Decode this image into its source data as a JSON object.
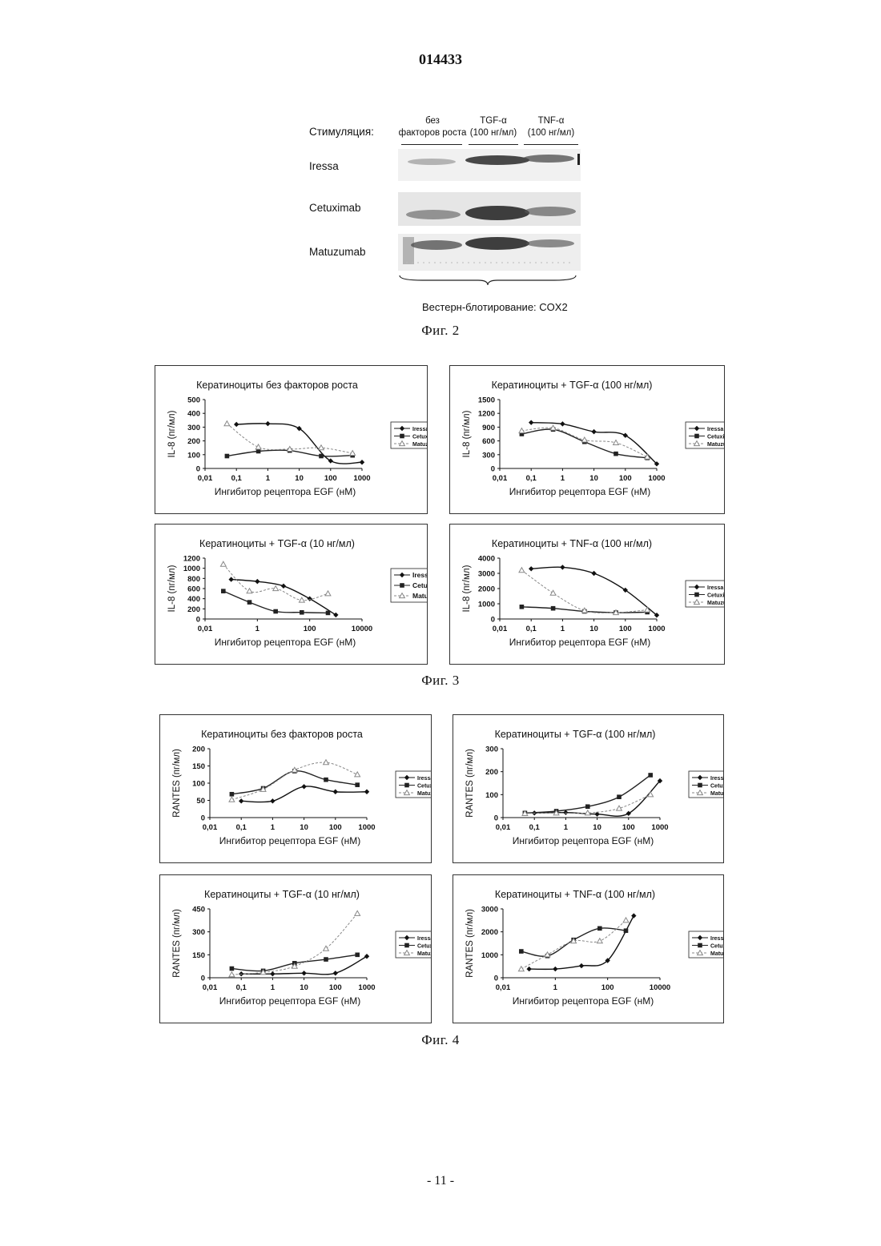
{
  "header": {
    "doc_number": "014433"
  },
  "fig2": {
    "stimulation_label": "Стимуляция:",
    "lanes": [
      {
        "line1": "без",
        "line2": "факторов роста"
      },
      {
        "line1": "TGF-α",
        "line2": "(100 нг/мл)"
      },
      {
        "line1": "TNF-α",
        "line2": "(100 нг/мл)"
      }
    ],
    "rows": [
      "Iressa",
      "Cetuximab",
      "Matuzumab"
    ],
    "bottom_label": "Вестерн-блотирование: COX2",
    "caption": "Фиг. 2"
  },
  "fig3_caption": "Фиг. 3",
  "fig4_caption": "Фиг. 4",
  "footer": {
    "page_number": "- 11 -"
  },
  "colors": {
    "ink": "#111111",
    "iressa": "#111111",
    "cetuximab": "#222222",
    "matuzumab": "#888888"
  },
  "chart_data": [
    {
      "type": "line",
      "title": "Кератиноциты без факторов роста",
      "xlabel": "Ингибитор рецептора EGF (нМ)",
      "ylabel": "IL-8 (пг/мл)",
      "xscale": "log",
      "xticks": [
        "0,01",
        "0,1",
        "1",
        "10",
        "100",
        "1000"
      ],
      "xlim": [
        0.01,
        1000
      ],
      "ylim": [
        0,
        500
      ],
      "yticks": [
        0,
        100,
        200,
        300,
        400,
        500
      ],
      "legend": "right",
      "series": [
        {
          "name": "Iressa",
          "x": [
            0.1,
            1,
            10,
            100,
            1000
          ],
          "y": [
            320,
            325,
            290,
            55,
            45
          ]
        },
        {
          "name": "Cetuximab",
          "x": [
            0.05,
            0.5,
            5,
            50,
            500
          ],
          "y": [
            90,
            125,
            130,
            90,
            95
          ]
        },
        {
          "name": "Matuzumab",
          "x": [
            0.05,
            0.5,
            5,
            50,
            500
          ],
          "y": [
            325,
            155,
            140,
            150,
            110
          ]
        }
      ]
    },
    {
      "type": "line",
      "title": "Кератиноциты + TGF-α (100 нг/мл)",
      "xlabel": "Ингибитор рецептора EGF (нМ)",
      "ylabel": "IL-8 (пг/мл)",
      "xscale": "log",
      "xticks": [
        "0,01",
        "0,1",
        "1",
        "10",
        "100",
        "1000"
      ],
      "xlim": [
        0.01,
        1000
      ],
      "ylim": [
        0,
        1500
      ],
      "yticks": [
        0,
        300,
        600,
        900,
        1200,
        1500
      ],
      "legend": "right",
      "series": [
        {
          "name": "Iressa",
          "x": [
            0.1,
            1,
            10,
            100,
            1000
          ],
          "y": [
            1000,
            970,
            800,
            720,
            100
          ]
        },
        {
          "name": "Cetuximab",
          "x": [
            0.05,
            0.5,
            5,
            50,
            500
          ],
          "y": [
            750,
            850,
            580,
            320,
            230
          ]
        },
        {
          "name": "Matuzumab",
          "x": [
            0.05,
            0.5,
            5,
            50,
            500
          ],
          "y": [
            820,
            880,
            620,
            560,
            250
          ]
        }
      ]
    },
    {
      "type": "line",
      "title": "Кератиноциты + TGF-α (10 нг/мл)",
      "xlabel": "Ингибитор рецептора EGF (нМ)",
      "ylabel": "IL-8 (пг/мл)",
      "xscale": "log",
      "xticks": [
        "0,01",
        "1",
        "100",
        "10000"
      ],
      "xlim": [
        0.01,
        10000
      ],
      "ylim": [
        0,
        1200
      ],
      "yticks": [
        0,
        200,
        400,
        600,
        800,
        1000,
        1200
      ],
      "legend": "right",
      "series": [
        {
          "name": "Iressa",
          "x": [
            0.1,
            1,
            10,
            100,
            1000
          ],
          "y": [
            780,
            740,
            650,
            400,
            80
          ]
        },
        {
          "name": "Cetuximab",
          "x": [
            0.05,
            0.5,
            5,
            50,
            500
          ],
          "y": [
            550,
            330,
            150,
            130,
            120
          ]
        },
        {
          "name": "Matuzumab",
          "x": [
            0.05,
            0.5,
            5,
            50,
            500
          ],
          "y": [
            1080,
            550,
            600,
            370,
            500
          ]
        }
      ]
    },
    {
      "type": "line",
      "title": "Кератиноциты + TNF-α (100 нг/мл)",
      "xlabel": "Ингибитор рецептора EGF (нМ)",
      "ylabel": "IL-8 (пг/мл)",
      "xscale": "log",
      "xticks": [
        "0,01",
        "0,1",
        "1",
        "10",
        "100",
        "1000"
      ],
      "xlim": [
        0.01,
        1000
      ],
      "ylim": [
        0,
        4000
      ],
      "yticks": [
        0,
        1000,
        2000,
        3000,
        4000
      ],
      "legend": "right",
      "series": [
        {
          "name": "Iressa",
          "x": [
            0.1,
            1,
            10,
            100,
            1000
          ],
          "y": [
            3300,
            3400,
            3000,
            1900,
            250
          ]
        },
        {
          "name": "Cetuximab",
          "x": [
            0.05,
            0.5,
            5,
            50,
            500
          ],
          "y": [
            800,
            700,
            500,
            420,
            450
          ]
        },
        {
          "name": "Matuzumab",
          "x": [
            0.05,
            0.5,
            5,
            50,
            500
          ],
          "y": [
            3200,
            1700,
            550,
            420,
            600
          ]
        }
      ]
    },
    {
      "type": "line",
      "title": "Кератиноциты без факторов роста",
      "xlabel": "Ингибитор рецептора EGF (нМ)",
      "ylabel": "RANTES (пг/мл)",
      "xscale": "log",
      "xticks": [
        "0,01",
        "0,1",
        "1",
        "10",
        "100",
        "1000"
      ],
      "xlim": [
        0.01,
        1000
      ],
      "ylim": [
        0,
        200
      ],
      "yticks": [
        0,
        50,
        100,
        150,
        200
      ],
      "legend": "right",
      "series": [
        {
          "name": "Iressa",
          "x": [
            0.1,
            1,
            10,
            100,
            1000
          ],
          "y": [
            48,
            48,
            90,
            75,
            75
          ]
        },
        {
          "name": "Cetuximab",
          "x": [
            0.05,
            0.5,
            5,
            50,
            500
          ],
          "y": [
            68,
            85,
            135,
            110,
            95
          ]
        },
        {
          "name": "Matuzumab",
          "x": [
            0.05,
            0.5,
            5,
            50,
            500
          ],
          "y": [
            52,
            82,
            138,
            160,
            125
          ]
        }
      ]
    },
    {
      "type": "line",
      "title": "Кератиноциты + TGF-α (100 нг/мл)",
      "xlabel": "Ингибитор рецептора EGF (нМ)",
      "ylabel": "RANTES (пг/мл)",
      "xscale": "log",
      "xticks": [
        "0,01",
        "0,1",
        "1",
        "10",
        "100",
        "1000"
      ],
      "xlim": [
        0.01,
        1000
      ],
      "ylim": [
        0,
        300
      ],
      "yticks": [
        0,
        100,
        200,
        300
      ],
      "legend": "right",
      "series": [
        {
          "name": "Iressa",
          "x": [
            0.1,
            1,
            10,
            100,
            1000
          ],
          "y": [
            20,
            22,
            15,
            18,
            160
          ]
        },
        {
          "name": "Cetuximab",
          "x": [
            0.05,
            0.5,
            5,
            50,
            500
          ],
          "y": [
            20,
            28,
            48,
            90,
            185
          ]
        },
        {
          "name": "Matuzumab",
          "x": [
            0.05,
            0.5,
            5,
            50,
            500
          ],
          "y": [
            18,
            20,
            20,
            40,
            100
          ]
        }
      ]
    },
    {
      "type": "line",
      "title": "Кератиноциты + TGF-α (10 нг/мл)",
      "xlabel": "Ингибитор рецептора EGF (нМ)",
      "ylabel": "RANTES (пг/мл)",
      "xscale": "log",
      "xticks": [
        "0,01",
        "0,1",
        "1",
        "10",
        "100",
        "1000"
      ],
      "xlim": [
        0.01,
        1000
      ],
      "ylim": [
        0,
        450
      ],
      "yticks": [
        0,
        150,
        300,
        450
      ],
      "legend": "right",
      "series": [
        {
          "name": "Iressa",
          "x": [
            0.1,
            1,
            10,
            100,
            1000
          ],
          "y": [
            25,
            25,
            30,
            30,
            140
          ]
        },
        {
          "name": "Cetuximab",
          "x": [
            0.05,
            0.5,
            5,
            50,
            500
          ],
          "y": [
            60,
            45,
            95,
            120,
            150
          ]
        },
        {
          "name": "Matuzumab",
          "x": [
            0.05,
            0.5,
            5,
            50,
            500
          ],
          "y": [
            20,
            35,
            75,
            190,
            420
          ]
        }
      ]
    },
    {
      "type": "line",
      "title": "Кератиноциты + TNF-α (100 нг/мл)",
      "xlabel": "Ингибитор рецептора EGF (нМ)",
      "ylabel": "RANTES (пг/мл)",
      "xscale": "log",
      "xticks": [
        "0,01",
        "1",
        "100",
        "10000"
      ],
      "xlim": [
        0.01,
        10000
      ],
      "ylim": [
        0,
        3000
      ],
      "yticks": [
        0,
        1000,
        2000,
        3000
      ],
      "legend": "right",
      "series": [
        {
          "name": "Iressa",
          "x": [
            0.1,
            1,
            10,
            100,
            1000
          ],
          "y": [
            380,
            380,
            520,
            750,
            2700
          ]
        },
        {
          "name": "Cetuximab",
          "x": [
            0.05,
            0.5,
            5,
            50,
            500
          ],
          "y": [
            1150,
            950,
            1650,
            2150,
            2050
          ]
        },
        {
          "name": "Matuzumab",
          "x": [
            0.05,
            0.5,
            5,
            50,
            500
          ],
          "y": [
            380,
            1000,
            1600,
            1600,
            2500
          ]
        }
      ]
    }
  ]
}
